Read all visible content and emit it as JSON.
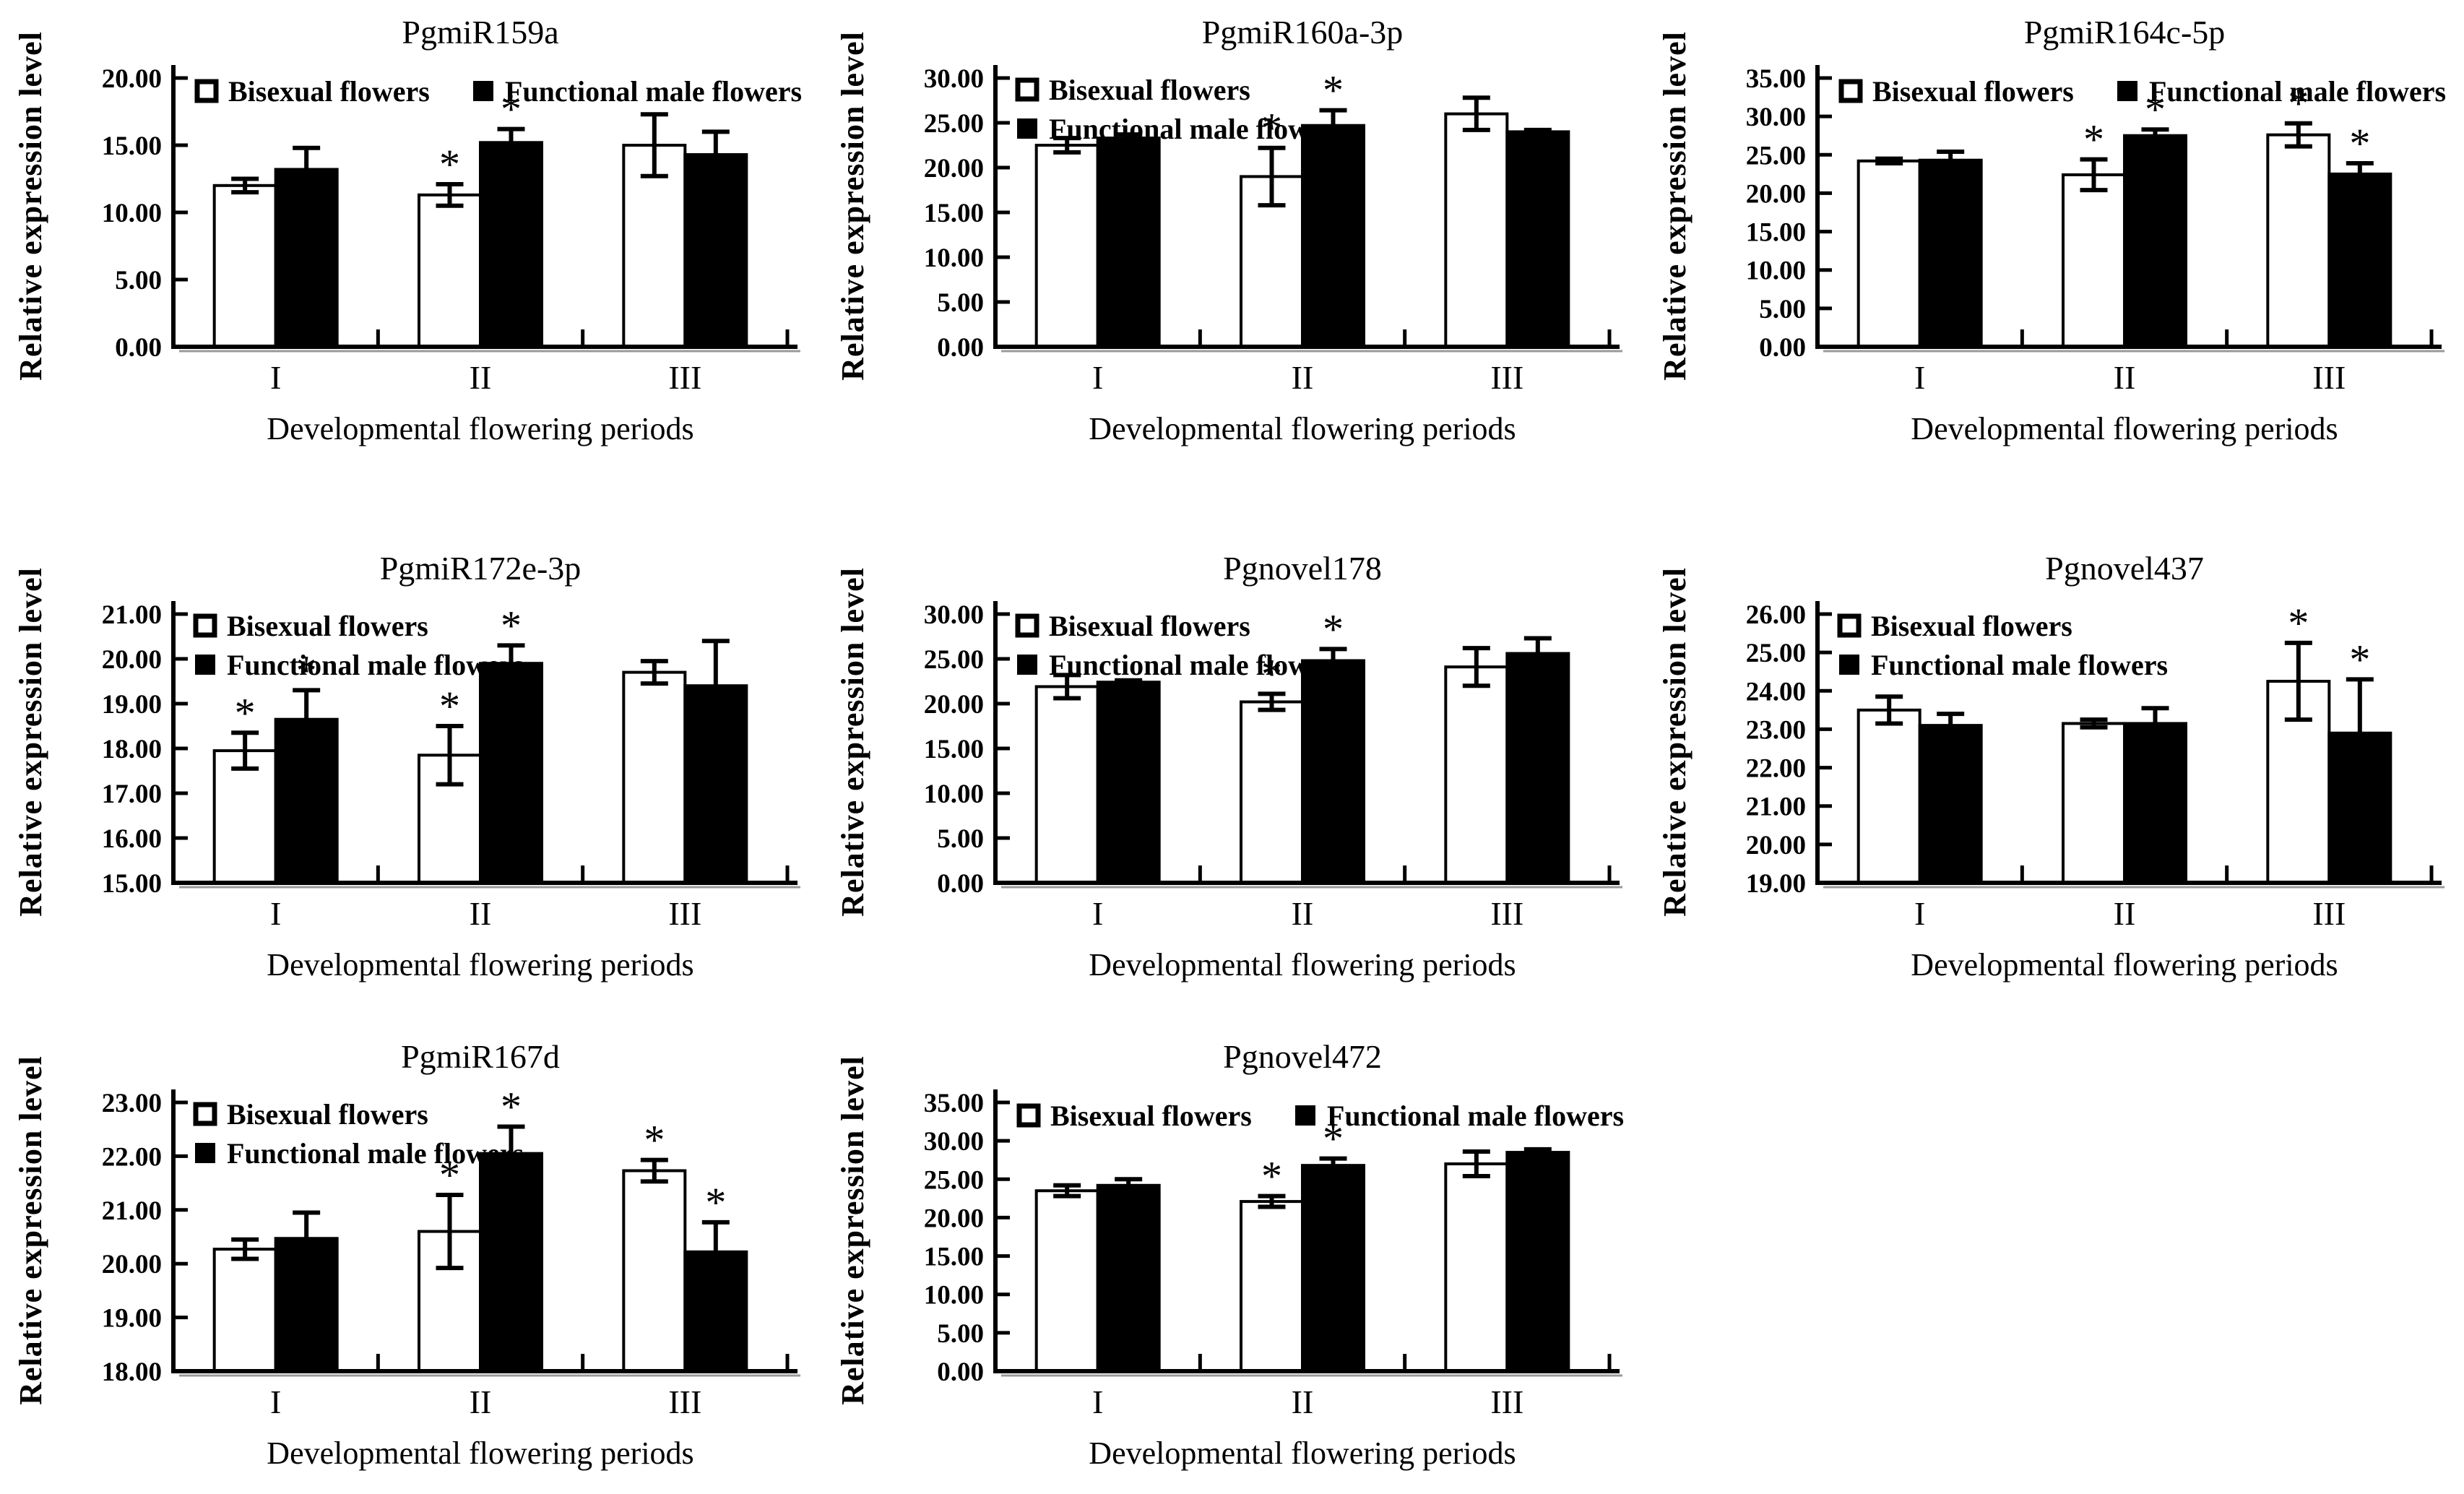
{
  "figure": {
    "background_color": "#ffffff",
    "ink_color": "#000000",
    "axis_shadow_color": "#999999",
    "ylabel": "Relative expression level",
    "xlabel": "Developmental flowering periods",
    "categories": [
      "I",
      "II",
      "III"
    ],
    "significance_marker": "*",
    "legend": {
      "bisexual_label": "Bisexual flowers",
      "male_label": "Functional male flowers",
      "bisexual_fill": "#ffffff",
      "male_fill": "#000000"
    }
  },
  "chart_data": [
    {
      "type": "bar",
      "title": "PgmiR159a",
      "xlabel": "Developmental flowering periods",
      "ylabel": "Relative expression level",
      "categories": [
        "I",
        "II",
        "III"
      ],
      "ylim": [
        0,
        20
      ],
      "ytick_step": 5,
      "ytick_labels": [
        "0.00",
        "5.00",
        "10.00",
        "15.00",
        "20.00"
      ],
      "legend_layout": "row",
      "series": [
        {
          "name": "Bisexual flowers",
          "fill": "#ffffff",
          "values": [
            12.0,
            11.3,
            15.0
          ],
          "errors": [
            0.5,
            0.8,
            2.3
          ],
          "significant": [
            false,
            true,
            false
          ]
        },
        {
          "name": "Functional male flowers",
          "fill": "#000000",
          "values": [
            13.2,
            15.2,
            14.3
          ],
          "errors": [
            1.6,
            1.0,
            1.7
          ],
          "significant": [
            false,
            true,
            false
          ]
        }
      ]
    },
    {
      "type": "bar",
      "title": "PgmiR160a-3p",
      "xlabel": "Developmental flowering periods",
      "ylabel": "Relative expression level",
      "categories": [
        "I",
        "II",
        "III"
      ],
      "ylim": [
        0,
        30
      ],
      "ytick_step": 5,
      "ytick_labels": [
        "0.00",
        "5.00",
        "10.00",
        "15.00",
        "20.00",
        "25.00",
        "30.00"
      ],
      "legend_layout": "stack",
      "series": [
        {
          "name": "Bisexual flowers",
          "fill": "#ffffff",
          "values": [
            22.5,
            19.0,
            26.0
          ],
          "errors": [
            0.8,
            3.2,
            1.8
          ],
          "significant": [
            false,
            true,
            false
          ]
        },
        {
          "name": "Functional male flowers",
          "fill": "#000000",
          "values": [
            23.3,
            24.7,
            24.0
          ],
          "errors": [
            0.4,
            1.7,
            0.2
          ],
          "significant": [
            false,
            true,
            false
          ]
        }
      ]
    },
    {
      "type": "bar",
      "title": "PgmiR164c-5p",
      "xlabel": "Developmental flowering periods",
      "ylabel": "Relative expression level",
      "categories": [
        "I",
        "II",
        "III"
      ],
      "ylim": [
        0,
        35
      ],
      "ytick_step": 5,
      "ytick_labels": [
        "0.00",
        "5.00",
        "10.00",
        "15.00",
        "20.00",
        "25.00",
        "30.00",
        "35.00"
      ],
      "legend_layout": "row",
      "series": [
        {
          "name": "Bisexual flowers",
          "fill": "#ffffff",
          "values": [
            24.2,
            22.4,
            27.6
          ],
          "errors": [
            0.3,
            2.0,
            1.5
          ],
          "significant": [
            false,
            true,
            true
          ]
        },
        {
          "name": "Functional male flowers",
          "fill": "#000000",
          "values": [
            24.3,
            27.5,
            22.5
          ],
          "errors": [
            1.1,
            0.8,
            1.4
          ],
          "significant": [
            false,
            true,
            true
          ]
        }
      ]
    },
    {
      "type": "bar",
      "title": "PgmiR172e-3p",
      "xlabel": "Developmental flowering periods",
      "ylabel": "Relative expression level",
      "categories": [
        "I",
        "II",
        "III"
      ],
      "ylim": [
        15,
        21
      ],
      "ytick_step": 1,
      "ytick_labels": [
        "15.00",
        "16.00",
        "17.00",
        "18.00",
        "19.00",
        "20.00",
        "21.00"
      ],
      "legend_layout": "stack",
      "series": [
        {
          "name": "Bisexual flowers",
          "fill": "#ffffff",
          "values": [
            17.95,
            17.85,
            19.7
          ],
          "errors": [
            0.4,
            0.65,
            0.25
          ],
          "significant": [
            true,
            true,
            false
          ]
        },
        {
          "name": "Functional male flowers",
          "fill": "#000000",
          "values": [
            18.65,
            19.9,
            19.4
          ],
          "errors": [
            0.65,
            0.4,
            1.0
          ],
          "significant": [
            true,
            true,
            false
          ]
        }
      ]
    },
    {
      "type": "bar",
      "title": "Pgnovel178",
      "xlabel": "Developmental flowering periods",
      "ylabel": "Relative expression level",
      "categories": [
        "I",
        "II",
        "III"
      ],
      "ylim": [
        0,
        30
      ],
      "ytick_step": 5,
      "ytick_labels": [
        "0.00",
        "5.00",
        "10.00",
        "15.00",
        "20.00",
        "25.00",
        "30.00"
      ],
      "legend_layout": "stack",
      "series": [
        {
          "name": "Bisexual flowers",
          "fill": "#ffffff",
          "values": [
            21.9,
            20.2,
            24.1
          ],
          "errors": [
            1.3,
            0.9,
            2.1
          ],
          "significant": [
            false,
            true,
            false
          ]
        },
        {
          "name": "Functional male flowers",
          "fill": "#000000",
          "values": [
            22.4,
            24.8,
            25.6
          ],
          "errors": [
            0.2,
            1.3,
            1.7
          ],
          "significant": [
            false,
            true,
            false
          ]
        }
      ]
    },
    {
      "type": "bar",
      "title": "Pgnovel437",
      "xlabel": "Developmental flowering periods",
      "ylabel": "Relative expression level",
      "categories": [
        "I",
        "II",
        "III"
      ],
      "ylim": [
        19,
        26
      ],
      "ytick_step": 1,
      "ytick_labels": [
        "19.00",
        "20.00",
        "21.00",
        "22.00",
        "23.00",
        "24.00",
        "25.00",
        "26.00"
      ],
      "legend_layout": "stack",
      "series": [
        {
          "name": "Bisexual flowers",
          "fill": "#ffffff",
          "values": [
            23.5,
            23.15,
            24.25
          ],
          "errors": [
            0.35,
            0.1,
            1.0
          ],
          "significant": [
            false,
            false,
            true
          ]
        },
        {
          "name": "Functional male flowers",
          "fill": "#000000",
          "values": [
            23.1,
            23.15,
            22.9
          ],
          "errors": [
            0.3,
            0.4,
            1.4
          ],
          "significant": [
            false,
            false,
            true
          ]
        }
      ]
    },
    {
      "type": "bar",
      "title": "PgmiR167d",
      "xlabel": "Developmental flowering periods",
      "ylabel": "Relative expression level",
      "categories": [
        "I",
        "II",
        "III"
      ],
      "ylim": [
        18,
        23
      ],
      "ytick_step": 1,
      "ytick_labels": [
        "18.00",
        "19.00",
        "20.00",
        "21.00",
        "22.00",
        "23.00"
      ],
      "legend_layout": "stack",
      "series": [
        {
          "name": "Bisexual flowers",
          "fill": "#ffffff",
          "values": [
            20.27,
            20.6,
            21.73
          ],
          "errors": [
            0.18,
            0.68,
            0.2
          ],
          "significant": [
            false,
            true,
            true
          ]
        },
        {
          "name": "Functional male flowers",
          "fill": "#000000",
          "values": [
            20.47,
            22.05,
            20.22
          ],
          "errors": [
            0.48,
            0.5,
            0.55
          ],
          "significant": [
            false,
            true,
            true
          ]
        }
      ]
    },
    {
      "type": "bar",
      "title": "Pgnovel472",
      "xlabel": "Developmental flowering periods",
      "ylabel": "Relative expression level",
      "categories": [
        "I",
        "II",
        "III"
      ],
      "ylim": [
        0,
        35
      ],
      "ytick_step": 5,
      "ytick_labels": [
        "0.00",
        "5.00",
        "10.00",
        "15.00",
        "20.00",
        "25.00",
        "30.00",
        "35.00"
      ],
      "legend_layout": "row",
      "series": [
        {
          "name": "Bisexual flowers",
          "fill": "#ffffff",
          "values": [
            23.5,
            22.1,
            27.0
          ],
          "errors": [
            0.7,
            0.7,
            1.6
          ],
          "significant": [
            false,
            true,
            false
          ]
        },
        {
          "name": "Functional male flowers",
          "fill": "#000000",
          "values": [
            24.2,
            26.8,
            28.5
          ],
          "errors": [
            0.8,
            0.9,
            0.4
          ],
          "significant": [
            false,
            true,
            false
          ]
        }
      ]
    }
  ]
}
